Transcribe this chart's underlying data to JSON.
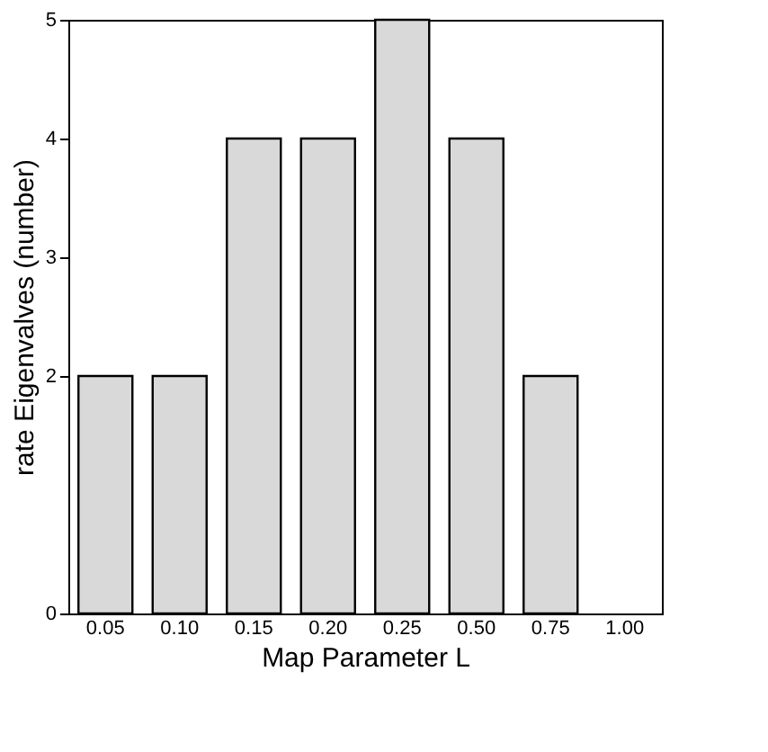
{
  "chart_data": {
    "type": "bar",
    "xlabel": "Map Parameter L",
    "ylabel": "rate Eigenvalves (number)",
    "categories": [
      "0.05",
      "0.10",
      "0.15",
      "0.20",
      "0.25",
      "0.50",
      "0.75",
      "1.00"
    ],
    "values": [
      2,
      2,
      4,
      4,
      5,
      4,
      2,
      null
    ],
    "color": "#d9d9d9",
    "ylim": [
      0,
      5
    ],
    "yticks": [
      0,
      2,
      3,
      4,
      5
    ],
    "grid": false
  }
}
